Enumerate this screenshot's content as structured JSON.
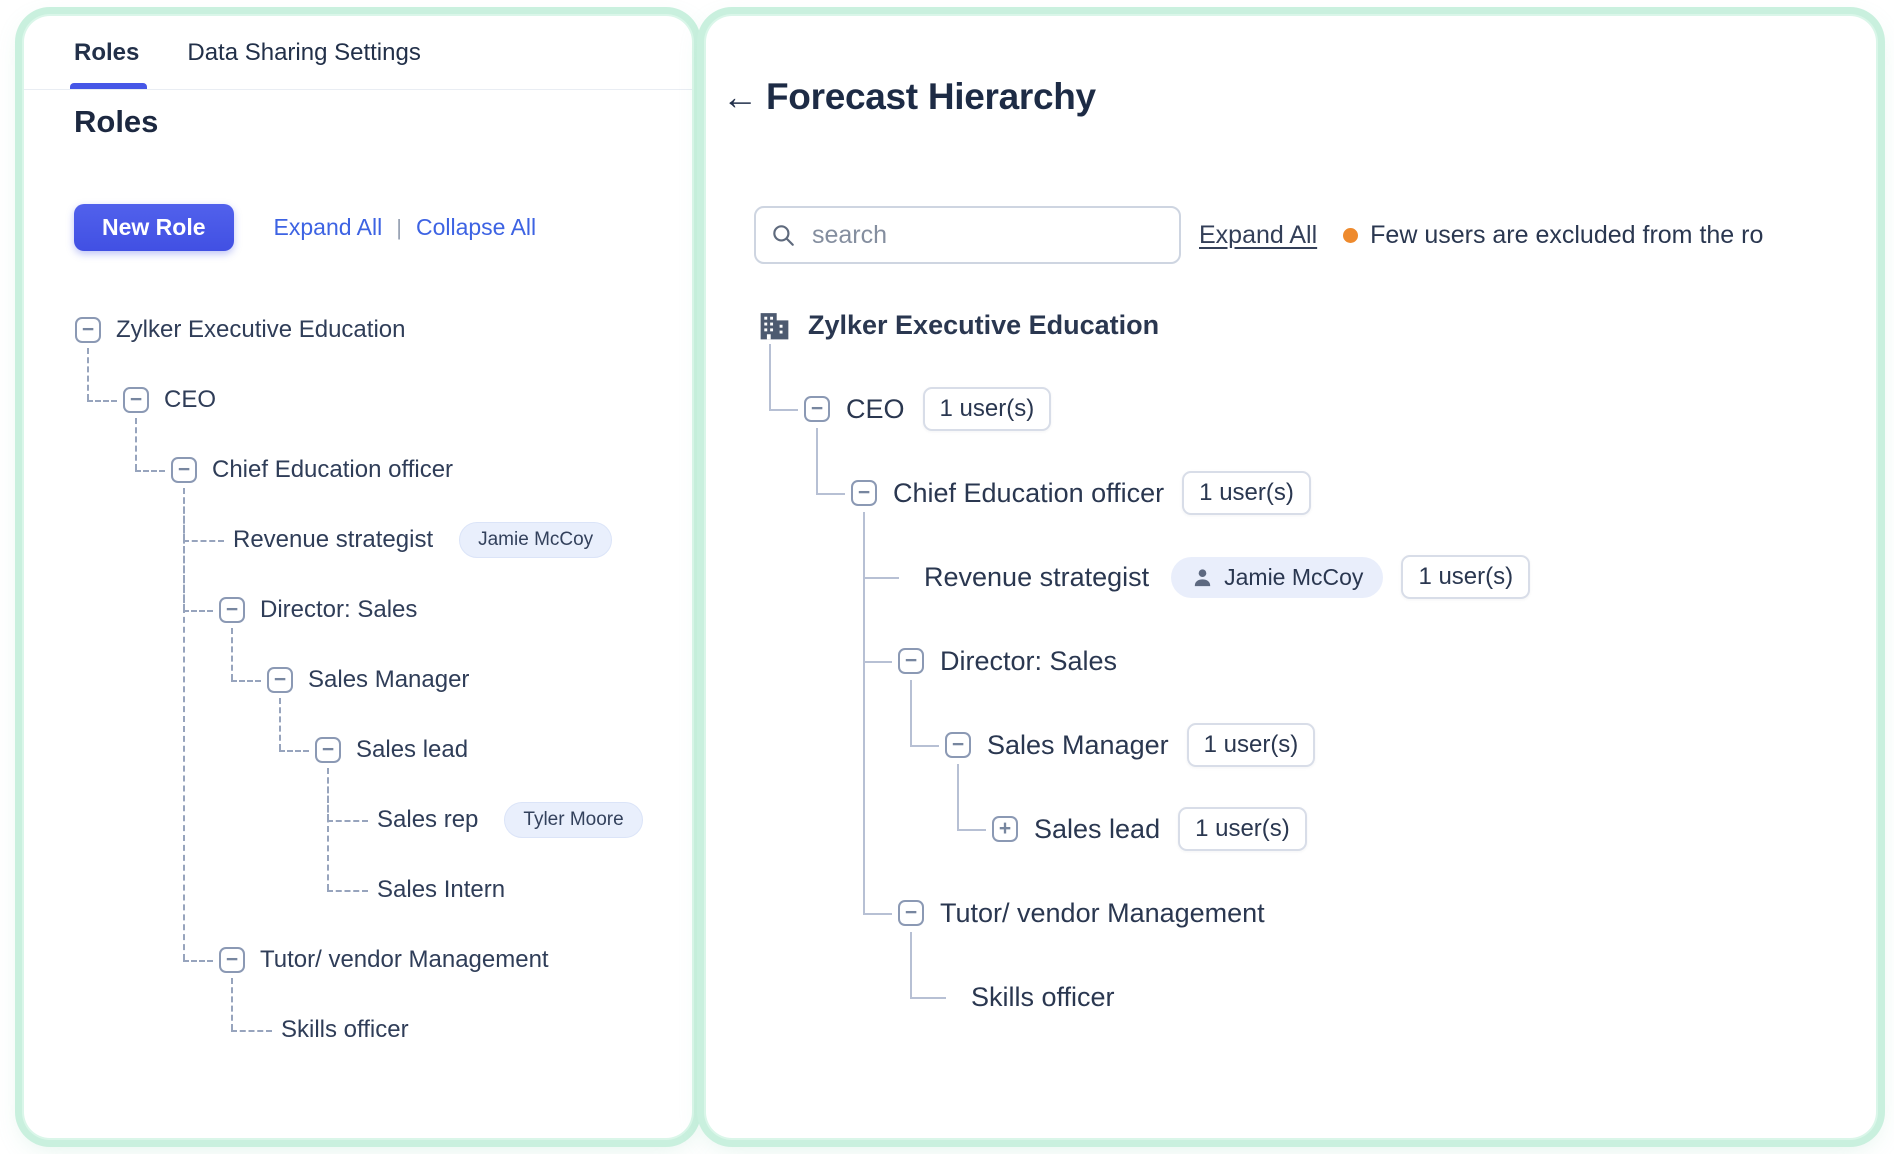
{
  "left_panel": {
    "tabs": [
      {
        "label": "Roles",
        "active": true
      },
      {
        "label": "Data Sharing Settings",
        "active": false
      }
    ],
    "heading": "Roles",
    "new_role_button": "New Role",
    "expand_all_link": "Expand All",
    "link_separator": "|",
    "collapse_all_link": "Collapse All",
    "tree": [
      {
        "label": "Zylker Executive Education",
        "depth": 0,
        "toggle": "minus"
      },
      {
        "label": "CEO",
        "depth": 1,
        "toggle": "minus"
      },
      {
        "label": "Chief Education officer",
        "depth": 2,
        "toggle": "minus"
      },
      {
        "label": "Revenue strategist",
        "depth": 3,
        "toggle": null,
        "badge": "Jamie McCoy"
      },
      {
        "label": "Director: Sales",
        "depth": 3,
        "toggle": "minus"
      },
      {
        "label": "Sales Manager",
        "depth": 4,
        "toggle": "minus"
      },
      {
        "label": "Sales lead",
        "depth": 5,
        "toggle": "minus"
      },
      {
        "label": "Sales rep",
        "depth": 6,
        "toggle": null,
        "badge": "Tyler Moore"
      },
      {
        "label": "Sales Intern",
        "depth": 6,
        "toggle": null
      },
      {
        "label": "Tutor/ vendor Management",
        "depth": 3,
        "toggle": "minus"
      },
      {
        "label": "Skills officer",
        "depth": 4,
        "toggle": null
      }
    ]
  },
  "right_panel": {
    "back_arrow": "←",
    "title": "Forecast Hierarchy",
    "search_placeholder": "search",
    "expand_all_link": "Expand All",
    "notice": "Few users are excluded from the ro",
    "tree": [
      {
        "label": "Zylker Executive Education",
        "depth": 0,
        "icon": "building",
        "bold": true
      },
      {
        "label": "CEO",
        "depth": 1,
        "toggle": "minus",
        "user_count": "1 user(s)"
      },
      {
        "label": "Chief Education officer",
        "depth": 2,
        "toggle": "minus",
        "user_count": "1 user(s)"
      },
      {
        "label": "Revenue strategist",
        "depth": 3,
        "toggle": null,
        "user_chip": "Jamie McCoy",
        "user_count": "1 user(s)"
      },
      {
        "label": "Director: Sales",
        "depth": 3,
        "toggle": "minus"
      },
      {
        "label": "Sales Manager",
        "depth": 4,
        "toggle": "minus",
        "user_count": "1 user(s)"
      },
      {
        "label": "Sales lead",
        "depth": 5,
        "toggle": "plus",
        "user_count": "1 user(s)"
      },
      {
        "label": "Tutor/ vendor Management",
        "depth": 3,
        "toggle": "minus"
      },
      {
        "label": "Skills officer",
        "depth": 4,
        "toggle": null
      }
    ]
  },
  "colors": {
    "accent_blue": "#4657e7",
    "link_blue": "#3d63e3",
    "mint_border": "#c9f0de",
    "orange_dot": "#ee8a2d",
    "navy_text": "#2a3750"
  }
}
